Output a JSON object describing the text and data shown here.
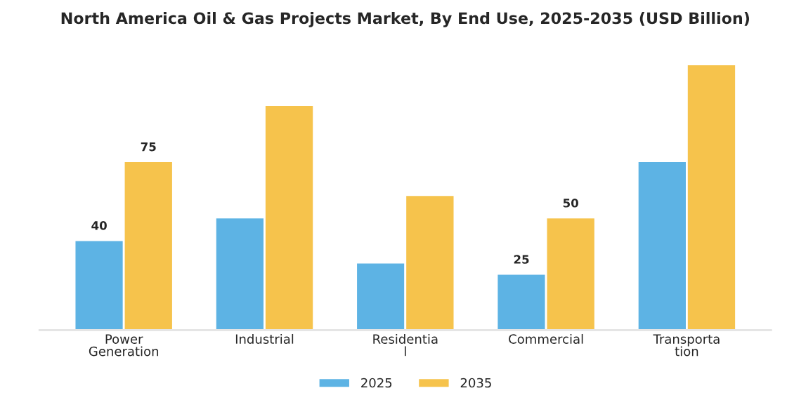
{
  "chart_data": {
    "type": "bar",
    "title": "North America Oil & Gas Projects Market, By End Use, 2025-2035 (USD Billion)",
    "categories": [
      "Power\nGeneration",
      "Industrial",
      "Residentia\nl",
      "Commercial",
      "Transporta\ntion"
    ],
    "series": [
      {
        "name": "2025",
        "color": "#5db3e4",
        "values": [
          40,
          50,
          30,
          25,
          75
        ],
        "value_labels": [
          "40",
          null,
          null,
          "25",
          null
        ]
      },
      {
        "name": "2035",
        "color": "#f6c34c",
        "values": [
          75,
          100,
          60,
          50,
          118
        ],
        "value_labels": [
          "75",
          null,
          null,
          "50",
          null
        ]
      }
    ],
    "legend": "bottom",
    "grid": false
  }
}
